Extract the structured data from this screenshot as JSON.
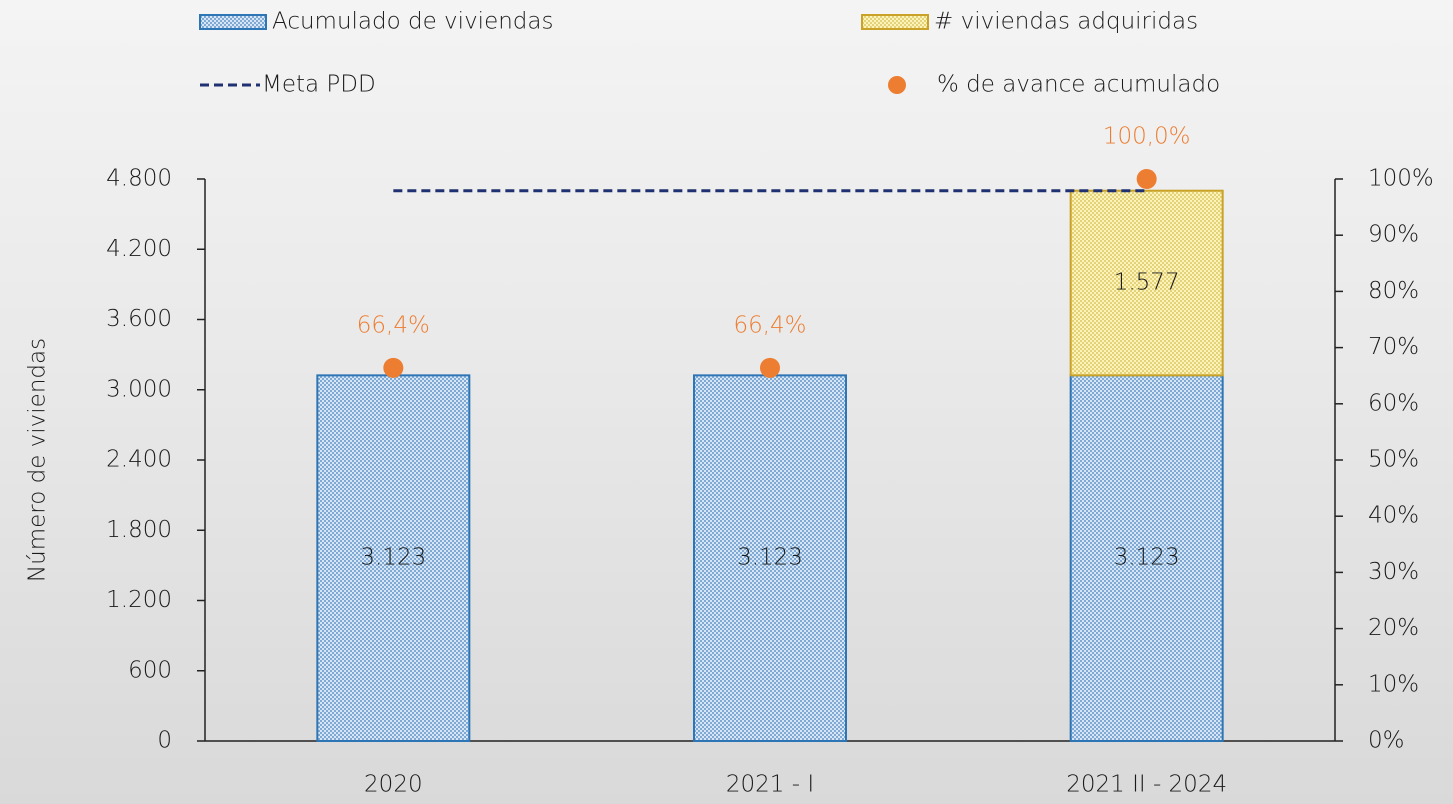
{
  "chart_data": {
    "type": "bar",
    "y_label": "Número de viviendas",
    "categories": [
      "2020",
      "2021 - I",
      "2021 II - 2024"
    ],
    "series": [
      {
        "name": "Acumulado de viviendas",
        "type": "bar",
        "color": "#2e75b6",
        "values": [
          3123,
          3123,
          3123
        ],
        "value_labels": [
          "3.123",
          "3.123",
          "3.123"
        ]
      },
      {
        "name": "# viviendas adquiridas",
        "type": "bar",
        "color": "#c9a227",
        "values": [
          null,
          null,
          1577
        ],
        "value_labels": [
          null,
          null,
          "1.577"
        ]
      },
      {
        "name": "Meta PDD",
        "type": "line",
        "color": "#1f3170",
        "values": [
          4700,
          4700,
          4700
        ]
      },
      {
        "name": "% de avance acumulado",
        "type": "scatter",
        "color": "#ed7d31",
        "axis": "y2",
        "values": [
          66.4,
          66.4,
          100
        ],
        "value_labels": [
          "66,4%",
          "66,4%",
          "100,0%"
        ]
      }
    ],
    "ylim": [
      0,
      4800
    ],
    "yticks": [
      0,
      600,
      {
        "value": 1200,
        "label": "1.200"
      },
      {
        "value": 1800,
        "label": "1.800"
      },
      {
        "value": 2400,
        "label": "2.400"
      },
      {
        "value": 3000,
        "label": "3.000"
      },
      {
        "value": 3600,
        "label": "3.600"
      },
      {
        "value": 4200,
        "label": "4.200"
      },
      {
        "value": 4800,
        "label": "4.800"
      }
    ],
    "y2lim": [
      0,
      100
    ],
    "y2ticks": [
      {
        "value": 0,
        "label": "0%"
      },
      {
        "value": 10,
        "label": "10%"
      },
      {
        "value": 20,
        "label": "20%"
      },
      {
        "value": 30,
        "label": "30%"
      },
      {
        "value": 40,
        "label": "40%"
      },
      {
        "value": 50,
        "label": "50%"
      },
      {
        "value": 60,
        "label": "60%"
      },
      {
        "value": 70,
        "label": "70%"
      },
      {
        "value": 80,
        "label": "80%"
      },
      {
        "value": 90,
        "label": "90%"
      },
      {
        "value": 100,
        "label": "100%"
      }
    ],
    "grid": false
  }
}
